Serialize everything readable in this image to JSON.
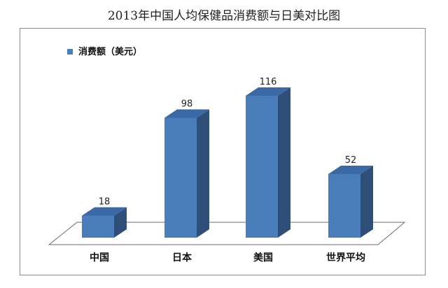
{
  "chart_data": {
    "type": "bar",
    "title": "2013年中国人均保健品消费额与日美对比图",
    "categories": [
      "中国",
      "日本",
      "美国",
      "世界平均"
    ],
    "series": [
      {
        "name": "消费额（美元）",
        "values": [
          18,
          98,
          116,
          52
        ]
      }
    ],
    "data_labels": [
      "18",
      "98",
      "116",
      "52"
    ],
    "ylim": [
      0,
      120
    ],
    "grid": false,
    "legend": "top-left",
    "style": "3d-column",
    "colors": {
      "front": "#4a7ebb",
      "side": "#2f4f79",
      "top": "#3a6aa6",
      "floor_stroke": "#6b6b6b",
      "frame": "#8c8c8c"
    }
  }
}
